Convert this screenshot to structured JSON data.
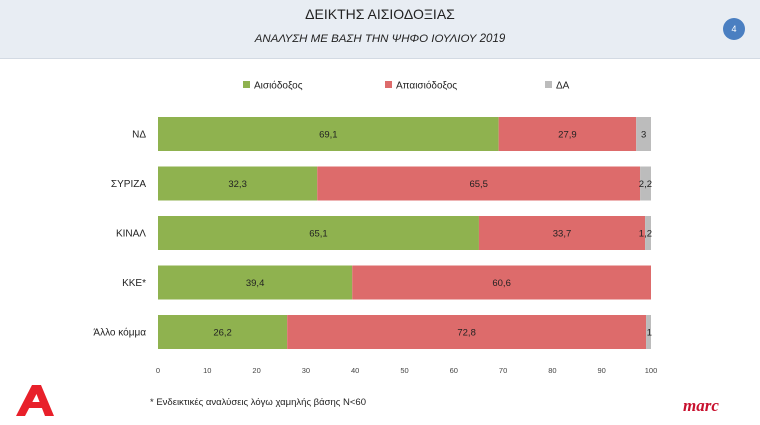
{
  "header": {
    "title": "ΔΕΙΚΤΗΣ ΑΙΣΙΟΔΟΞΙΑΣ",
    "subtitle": "ΑΝΑΛΥΣΗ ΜΕ ΒΑΣΗ ΤΗΝ ΨΗΦΟ ΙΟΥΛΙΟΥ 2019",
    "page_number": "4"
  },
  "footnote": "* Ενδεικτικές αναλύσεις λόγω χαμηλής βάσης Ν<60",
  "brand": "marc",
  "logo_icon": "alpha-tv-logo-icon",
  "colors": {
    "optimistic": "#8fb24f",
    "pessimistic": "#dd6b6b",
    "da": "#bcbcbc",
    "header_bg": "#e8edf3",
    "badge": "#4a7fc1",
    "brand": "#c8102e"
  },
  "chart_data": {
    "type": "bar",
    "orientation": "horizontal",
    "stacked": true,
    "categories": [
      "ΝΔ",
      "ΣΥΡΙΖΑ",
      "ΚΙΝΑΛ",
      "ΚΚΕ*",
      "Άλλο κόμμα"
    ],
    "series": [
      {
        "name": "Αισιόδοξος",
        "values": [
          69.1,
          32.3,
          65.1,
          39.4,
          26.2
        ],
        "labels": [
          "69,1",
          "32,3",
          "65,1",
          "39,4",
          "26,2"
        ]
      },
      {
        "name": "Απαισιόδοξος",
        "values": [
          27.9,
          65.5,
          33.7,
          60.6,
          72.8
        ],
        "labels": [
          "27,9",
          "65,5",
          "33,7",
          "60,6",
          "72,8"
        ]
      },
      {
        "name": "ΔΑ",
        "values": [
          3,
          2.2,
          1.2,
          0,
          1
        ],
        "labels": [
          "3",
          "2,2",
          "1,2",
          "",
          "1"
        ]
      }
    ],
    "xlim": [
      0,
      100
    ],
    "xticks": [
      "0",
      "10",
      "20",
      "30",
      "40",
      "50",
      "60",
      "70",
      "80",
      "90",
      "100"
    ],
    "legend": "top",
    "grid": false
  }
}
